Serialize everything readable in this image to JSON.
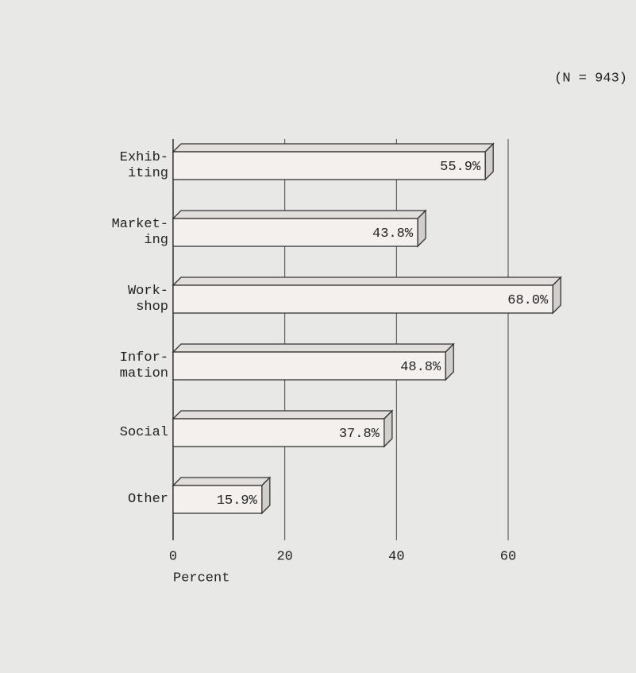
{
  "chart_data": {
    "type": "bar",
    "orientation": "horizontal",
    "annotation": "(N = 943)",
    "xlabel": "Percent",
    "categories": [
      "Exhib-\niting",
      "Market-\ning",
      "Work-\nshop",
      "Infor-\nmation",
      "Social",
      "Other"
    ],
    "values": [
      55.9,
      43.8,
      68.0,
      48.8,
      37.8,
      15.9
    ],
    "value_labels": [
      "55.9%",
      "43.8%",
      "68.0%",
      "48.8%",
      "37.8%",
      "15.9%"
    ],
    "color": "#f3f0ee",
    "xlim": [
      0,
      60
    ],
    "xticks": [
      0,
      20,
      40,
      60
    ],
    "grid": true
  }
}
